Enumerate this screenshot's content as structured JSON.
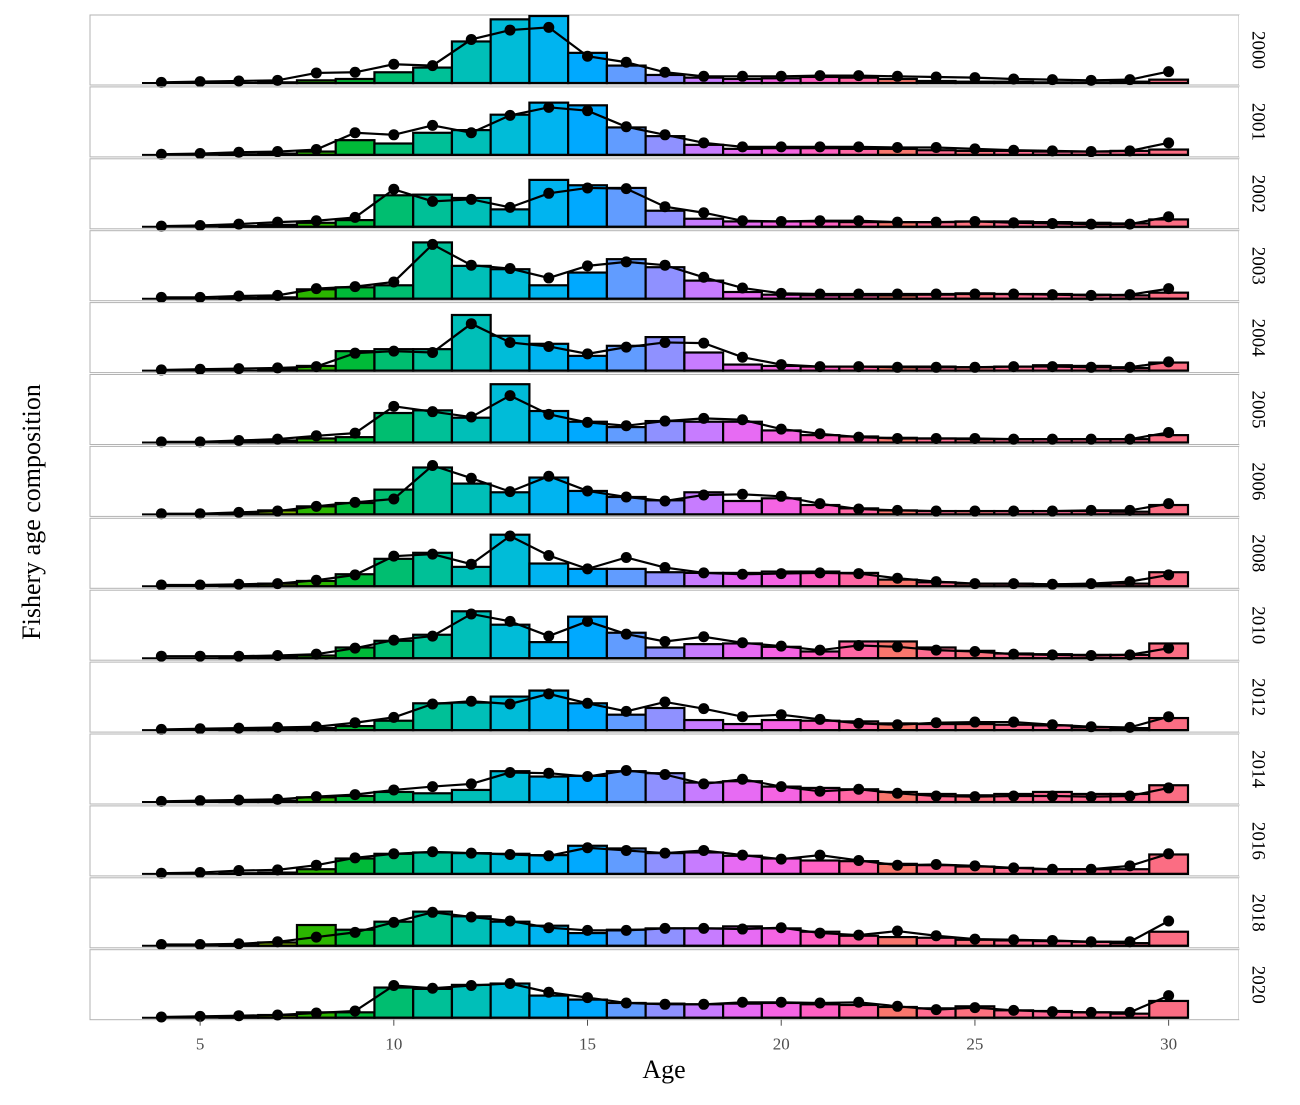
{
  "chart_data": {
    "type": "bar",
    "title": "",
    "xlabel": "Age",
    "ylabel": "Fishery age composition",
    "xlim": [
      3.5,
      30.5
    ],
    "x_ticks": [
      5,
      10,
      15,
      20,
      25,
      30
    ],
    "grid": false,
    "legend": "none",
    "ages": [
      4,
      5,
      6,
      7,
      8,
      9,
      10,
      11,
      12,
      13,
      14,
      15,
      16,
      17,
      18,
      19,
      20,
      21,
      22,
      23,
      24,
      25,
      26,
      27,
      28,
      29,
      30
    ],
    "bar_colors": [
      "#DE8C00",
      "#C59900",
      "#A5A300",
      "#7CAE00",
      "#2BB600",
      "#00BA38",
      "#00BE70",
      "#00C097",
      "#00BFB8",
      "#00BCD8",
      "#00B4F0",
      "#00A9FF",
      "#619CFF",
      "#8F91FF",
      "#C77CFF",
      "#E76BF3",
      "#F564E3",
      "#FF61C3",
      "#FF67A4",
      "#F8766D",
      "#FF6C90",
      "#FC717F",
      "#FF6C90",
      "#FF6A98",
      "#FF6C91",
      "#FF6C91",
      "#FB6D83"
    ],
    "panels": [
      {
        "year": "2000",
        "observed": [
          0,
          0,
          0,
          0.01,
          0.04,
          0.06,
          0.16,
          0.23,
          0.62,
          0.95,
          1.0,
          0.45,
          0.26,
          0.12,
          0.08,
          0.06,
          0.07,
          0.09,
          0.08,
          0.06,
          0.03,
          0.02,
          0.02,
          0.01,
          0.01,
          0.02,
          0.05
        ],
        "expected": [
          0.01,
          0.02,
          0.03,
          0.04,
          0.15,
          0.16,
          0.28,
          0.26,
          0.65,
          0.79,
          0.83,
          0.4,
          0.31,
          0.16,
          0.1,
          0.1,
          0.1,
          0.11,
          0.11,
          0.1,
          0.09,
          0.08,
          0.06,
          0.05,
          0.04,
          0.05,
          0.17
        ]
      },
      {
        "year": "2001",
        "observed": [
          0,
          0,
          0.01,
          0.02,
          0.05,
          0.22,
          0.17,
          0.33,
          0.37,
          0.6,
          0.78,
          0.74,
          0.41,
          0.28,
          0.15,
          0.09,
          0.1,
          0.1,
          0.09,
          0.09,
          0.07,
          0.06,
          0.06,
          0.05,
          0.05,
          0.06,
          0.08
        ],
        "expected": [
          0.01,
          0.02,
          0.04,
          0.05,
          0.08,
          0.33,
          0.3,
          0.44,
          0.33,
          0.59,
          0.71,
          0.66,
          0.42,
          0.3,
          0.18,
          0.12,
          0.12,
          0.12,
          0.12,
          0.11,
          0.11,
          0.09,
          0.07,
          0.06,
          0.05,
          0.06,
          0.18
        ]
      },
      {
        "year": "2002",
        "observed": [
          0,
          0,
          0.01,
          0.03,
          0.06,
          0.1,
          0.47,
          0.48,
          0.43,
          0.26,
          0.7,
          0.62,
          0.58,
          0.24,
          0.12,
          0.08,
          0.08,
          0.08,
          0.07,
          0.07,
          0.07,
          0.08,
          0.08,
          0.07,
          0.06,
          0.05,
          0.11
        ],
        "expected": [
          0.01,
          0.02,
          0.04,
          0.07,
          0.09,
          0.14,
          0.56,
          0.38,
          0.41,
          0.29,
          0.5,
          0.58,
          0.57,
          0.3,
          0.21,
          0.09,
          0.08,
          0.09,
          0.09,
          0.07,
          0.07,
          0.08,
          0.06,
          0.05,
          0.04,
          0.04,
          0.15
        ]
      },
      {
        "year": "2003",
        "observed": [
          0,
          0,
          0.01,
          0.02,
          0.14,
          0.17,
          0.2,
          0.84,
          0.49,
          0.44,
          0.2,
          0.39,
          0.59,
          0.47,
          0.27,
          0.1,
          0.06,
          0.05,
          0.05,
          0.05,
          0.06,
          0.08,
          0.07,
          0.07,
          0.06,
          0.05,
          0.09
        ],
        "expected": [
          0.02,
          0.02,
          0.04,
          0.05,
          0.15,
          0.18,
          0.25,
          0.81,
          0.5,
          0.45,
          0.31,
          0.49,
          0.55,
          0.5,
          0.32,
          0.16,
          0.08,
          0.07,
          0.07,
          0.07,
          0.07,
          0.07,
          0.07,
          0.06,
          0.05,
          0.06,
          0.15
        ]
      },
      {
        "year": "2004",
        "observed": [
          0,
          0,
          0,
          0.03,
          0.07,
          0.29,
          0.32,
          0.32,
          0.83,
          0.52,
          0.4,
          0.22,
          0.37,
          0.5,
          0.27,
          0.09,
          0.07,
          0.06,
          0.06,
          0.06,
          0.06,
          0.05,
          0.06,
          0.08,
          0.07,
          0.04,
          0.12
        ],
        "expected": [
          0.01,
          0.02,
          0.03,
          0.04,
          0.06,
          0.26,
          0.29,
          0.27,
          0.7,
          0.42,
          0.36,
          0.25,
          0.35,
          0.42,
          0.41,
          0.2,
          0.09,
          0.06,
          0.06,
          0.05,
          0.05,
          0.05,
          0.06,
          0.06,
          0.05,
          0.05,
          0.13
        ]
      },
      {
        "year": "2005",
        "observed": [
          0,
          0,
          0.01,
          0.03,
          0.06,
          0.08,
          0.44,
          0.48,
          0.37,
          0.87,
          0.47,
          0.31,
          0.23,
          0.32,
          0.31,
          0.31,
          0.18,
          0.11,
          0.09,
          0.07,
          0.06,
          0.05,
          0.05,
          0.05,
          0.05,
          0.05,
          0.11
        ],
        "expected": [
          0.01,
          0.01,
          0.03,
          0.05,
          0.1,
          0.14,
          0.54,
          0.46,
          0.38,
          0.7,
          0.42,
          0.3,
          0.25,
          0.32,
          0.36,
          0.34,
          0.2,
          0.13,
          0.08,
          0.06,
          0.06,
          0.06,
          0.05,
          0.05,
          0.05,
          0.05,
          0.15
        ]
      },
      {
        "year": "2006",
        "observed": [
          0,
          0,
          0.01,
          0.06,
          0.12,
          0.17,
          0.37,
          0.7,
          0.46,
          0.33,
          0.55,
          0.35,
          0.26,
          0.21,
          0.33,
          0.2,
          0.24,
          0.14,
          0.09,
          0.06,
          0.05,
          0.05,
          0.05,
          0.05,
          0.05,
          0.04,
          0.14
        ],
        "expected": [
          0.01,
          0.01,
          0.03,
          0.05,
          0.12,
          0.18,
          0.23,
          0.73,
          0.54,
          0.34,
          0.57,
          0.35,
          0.26,
          0.2,
          0.29,
          0.3,
          0.27,
          0.16,
          0.08,
          0.06,
          0.05,
          0.05,
          0.05,
          0.05,
          0.06,
          0.06,
          0.16
        ]
      },
      {
        "year": "2008",
        "observed": [
          0,
          0,
          0.01,
          0.04,
          0.08,
          0.18,
          0.41,
          0.5,
          0.29,
          0.77,
          0.34,
          0.26,
          0.26,
          0.21,
          0.2,
          0.2,
          0.22,
          0.22,
          0.2,
          0.1,
          0.06,
          0.04,
          0.04,
          0.03,
          0.03,
          0.04,
          0.21
        ],
        "expected": [
          0.02,
          0.02,
          0.03,
          0.04,
          0.09,
          0.17,
          0.45,
          0.48,
          0.33,
          0.75,
          0.46,
          0.26,
          0.43,
          0.28,
          0.2,
          0.18,
          0.19,
          0.2,
          0.19,
          0.12,
          0.07,
          0.04,
          0.04,
          0.03,
          0.04,
          0.07,
          0.17
        ]
      },
      {
        "year": "2010",
        "observed": [
          0,
          0,
          0.01,
          0.02,
          0.04,
          0.16,
          0.26,
          0.35,
          0.7,
          0.5,
          0.24,
          0.62,
          0.38,
          0.16,
          0.21,
          0.22,
          0.17,
          0.1,
          0.25,
          0.25,
          0.16,
          0.11,
          0.07,
          0.06,
          0.05,
          0.05,
          0.22
        ],
        "expected": [
          0.03,
          0.03,
          0.03,
          0.04,
          0.06,
          0.15,
          0.27,
          0.33,
          0.66,
          0.55,
          0.33,
          0.55,
          0.36,
          0.25,
          0.32,
          0.23,
          0.18,
          0.12,
          0.19,
          0.17,
          0.12,
          0.1,
          0.06,
          0.05,
          0.04,
          0.05,
          0.15
        ]
      },
      {
        "year": "2012",
        "observed": [
          0,
          0,
          0.01,
          0.02,
          0.03,
          0.06,
          0.14,
          0.4,
          0.41,
          0.5,
          0.59,
          0.4,
          0.23,
          0.33,
          0.15,
          0.09,
          0.15,
          0.14,
          0.13,
          0.1,
          0.09,
          0.09,
          0.08,
          0.07,
          0.04,
          0.03,
          0.18
        ],
        "expected": [
          0.01,
          0.02,
          0.03,
          0.04,
          0.05,
          0.11,
          0.19,
          0.39,
          0.43,
          0.39,
          0.54,
          0.4,
          0.28,
          0.42,
          0.32,
          0.2,
          0.23,
          0.16,
          0.1,
          0.08,
          0.11,
          0.12,
          0.12,
          0.08,
          0.05,
          0.04,
          0.2
        ]
      },
      {
        "year": "2014",
        "observed": [
          0,
          0,
          0.01,
          0.02,
          0.07,
          0.09,
          0.15,
          0.13,
          0.18,
          0.46,
          0.38,
          0.39,
          0.46,
          0.43,
          0.29,
          0.31,
          0.23,
          0.21,
          0.19,
          0.15,
          0.12,
          0.1,
          0.12,
          0.15,
          0.12,
          0.12,
          0.25
        ],
        "expected": [
          0.01,
          0.02,
          0.03,
          0.04,
          0.08,
          0.11,
          0.18,
          0.23,
          0.27,
          0.44,
          0.43,
          0.38,
          0.47,
          0.41,
          0.27,
          0.34,
          0.23,
          0.16,
          0.19,
          0.13,
          0.09,
          0.08,
          0.09,
          0.09,
          0.08,
          0.09,
          0.21
        ]
      },
      {
        "year": "2016",
        "observed": [
          0,
          0,
          0.01,
          0.02,
          0.07,
          0.23,
          0.3,
          0.32,
          0.31,
          0.3,
          0.28,
          0.42,
          0.38,
          0.31,
          0.32,
          0.27,
          0.23,
          0.2,
          0.19,
          0.15,
          0.13,
          0.11,
          0.09,
          0.07,
          0.07,
          0.07,
          0.29
        ],
        "expected": [
          0.01,
          0.02,
          0.05,
          0.06,
          0.13,
          0.24,
          0.3,
          0.33,
          0.31,
          0.29,
          0.27,
          0.39,
          0.35,
          0.31,
          0.35,
          0.28,
          0.22,
          0.28,
          0.2,
          0.13,
          0.14,
          0.12,
          0.09,
          0.07,
          0.07,
          0.12,
          0.3
        ]
      },
      {
        "year": "2018",
        "observed": [
          0,
          0,
          0.01,
          0.05,
          0.31,
          0.24,
          0.36,
          0.51,
          0.44,
          0.36,
          0.3,
          0.19,
          0.24,
          0.26,
          0.26,
          0.29,
          0.26,
          0.21,
          0.15,
          0.13,
          0.12,
          0.09,
          0.08,
          0.07,
          0.06,
          0.04,
          0.21
        ],
        "expected": [
          0.02,
          0.02,
          0.03,
          0.06,
          0.13,
          0.2,
          0.35,
          0.5,
          0.43,
          0.37,
          0.27,
          0.23,
          0.23,
          0.26,
          0.26,
          0.25,
          0.27,
          0.19,
          0.16,
          0.22,
          0.15,
          0.1,
          0.09,
          0.08,
          0.06,
          0.06,
          0.37
        ]
      },
      {
        "year": "2020",
        "observed": [
          0,
          0,
          0.01,
          0.04,
          0.08,
          0.08,
          0.45,
          0.43,
          0.49,
          0.51,
          0.33,
          0.27,
          0.22,
          0.21,
          0.2,
          0.21,
          0.22,
          0.2,
          0.19,
          0.16,
          0.14,
          0.17,
          0.11,
          0.1,
          0.08,
          0.06,
          0.25
        ],
        "expected": [
          0.01,
          0.02,
          0.03,
          0.04,
          0.07,
          0.1,
          0.48,
          0.44,
          0.48,
          0.51,
          0.38,
          0.3,
          0.22,
          0.2,
          0.2,
          0.23,
          0.23,
          0.22,
          0.23,
          0.17,
          0.12,
          0.15,
          0.11,
          0.09,
          0.08,
          0.08,
          0.33
        ]
      }
    ]
  }
}
